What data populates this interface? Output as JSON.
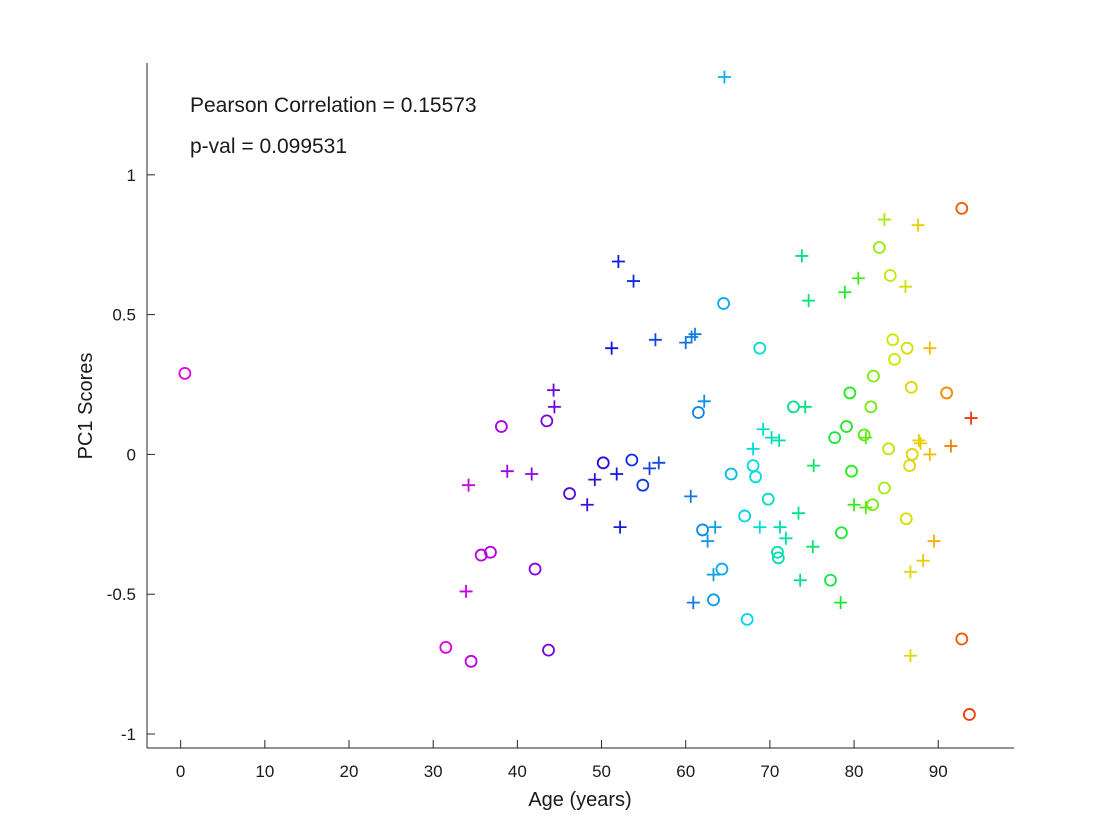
{
  "chart_data": {
    "type": "scatter",
    "xlabel": "Age (years)",
    "ylabel": "PC1 Scores",
    "xlim": [
      -4,
      99
    ],
    "ylim": [
      -1.05,
      1.4
    ],
    "xticks": [
      0,
      10,
      20,
      30,
      40,
      50,
      60,
      70,
      80,
      90
    ],
    "yticks": [
      -1,
      -0.5,
      0,
      0.5,
      1
    ],
    "xtick_labels": [
      "0",
      "10",
      "20",
      "30",
      "40",
      "50",
      "60",
      "70",
      "80",
      "90"
    ],
    "ytick_labels": [
      "-1",
      "-0.5",
      "0",
      "0.5",
      "1"
    ],
    "annotations": [
      "Pearson Correlation = 0.15573",
      "p-val = 0.099531"
    ],
    "marker_legend": {
      "circle": "o",
      "cross": "+"
    },
    "points": [
      {
        "x": 0.5,
        "y": 0.29,
        "m": "o"
      },
      {
        "x": 31.5,
        "y": -0.69,
        "m": "o"
      },
      {
        "x": 34.5,
        "y": -0.74,
        "m": "o"
      },
      {
        "x": 35.7,
        "y": -0.36,
        "m": "o"
      },
      {
        "x": 36.8,
        "y": -0.35,
        "m": "o"
      },
      {
        "x": 38.1,
        "y": 0.1,
        "m": "o"
      },
      {
        "x": 42.1,
        "y": -0.41,
        "m": "o"
      },
      {
        "x": 43.5,
        "y": 0.12,
        "m": "o"
      },
      {
        "x": 43.7,
        "y": -0.7,
        "m": "o"
      },
      {
        "x": 46.2,
        "y": -0.14,
        "m": "o"
      },
      {
        "x": 50.2,
        "y": -0.03,
        "m": "o"
      },
      {
        "x": 53.6,
        "y": -0.02,
        "m": "o"
      },
      {
        "x": 54.9,
        "y": -0.11,
        "m": "o"
      },
      {
        "x": 61.5,
        "y": 0.15,
        "m": "o"
      },
      {
        "x": 62.0,
        "y": -0.27,
        "m": "o"
      },
      {
        "x": 63.3,
        "y": -0.52,
        "m": "o"
      },
      {
        "x": 64.3,
        "y": -0.41,
        "m": "o"
      },
      {
        "x": 64.5,
        "y": 0.54,
        "m": "o"
      },
      {
        "x": 65.4,
        "y": -0.07,
        "m": "o"
      },
      {
        "x": 67.0,
        "y": -0.22,
        "m": "o"
      },
      {
        "x": 67.3,
        "y": -0.59,
        "m": "o"
      },
      {
        "x": 68.0,
        "y": -0.04,
        "m": "o"
      },
      {
        "x": 68.3,
        "y": -0.08,
        "m": "o"
      },
      {
        "x": 68.8,
        "y": 0.38,
        "m": "o"
      },
      {
        "x": 69.8,
        "y": -0.16,
        "m": "o"
      },
      {
        "x": 70.9,
        "y": -0.35,
        "m": "o"
      },
      {
        "x": 71.0,
        "y": -0.37,
        "m": "o"
      },
      {
        "x": 72.8,
        "y": 0.17,
        "m": "o"
      },
      {
        "x": 77.2,
        "y": -0.45,
        "m": "o"
      },
      {
        "x": 77.7,
        "y": 0.06,
        "m": "o"
      },
      {
        "x": 78.5,
        "y": -0.28,
        "m": "o"
      },
      {
        "x": 79.1,
        "y": 0.1,
        "m": "o"
      },
      {
        "x": 79.5,
        "y": 0.22,
        "m": "o"
      },
      {
        "x": 79.7,
        "y": -0.06,
        "m": "o"
      },
      {
        "x": 81.2,
        "y": 0.07,
        "m": "o"
      },
      {
        "x": 82.0,
        "y": 0.17,
        "m": "o"
      },
      {
        "x": 82.2,
        "y": -0.18,
        "m": "o"
      },
      {
        "x": 82.3,
        "y": 0.28,
        "m": "o"
      },
      {
        "x": 83.0,
        "y": 0.74,
        "m": "o"
      },
      {
        "x": 83.6,
        "y": -0.12,
        "m": "o"
      },
      {
        "x": 84.1,
        "y": 0.02,
        "m": "o"
      },
      {
        "x": 84.3,
        "y": 0.64,
        "m": "o"
      },
      {
        "x": 84.6,
        "y": 0.41,
        "m": "o"
      },
      {
        "x": 84.8,
        "y": 0.34,
        "m": "o"
      },
      {
        "x": 86.2,
        "y": -0.23,
        "m": "o"
      },
      {
        "x": 86.3,
        "y": 0.38,
        "m": "o"
      },
      {
        "x": 86.6,
        "y": -0.04,
        "m": "o"
      },
      {
        "x": 86.8,
        "y": 0.24,
        "m": "o"
      },
      {
        "x": 86.9,
        "y": 0.0,
        "m": "o"
      },
      {
        "x": 91.0,
        "y": 0.22,
        "m": "o"
      },
      {
        "x": 92.8,
        "y": 0.88,
        "m": "o"
      },
      {
        "x": 92.8,
        "y": -0.66,
        "m": "o"
      },
      {
        "x": 93.7,
        "y": -0.93,
        "m": "o"
      },
      {
        "x": 33.9,
        "y": -0.49,
        "m": "+"
      },
      {
        "x": 34.2,
        "y": -0.11,
        "m": "+"
      },
      {
        "x": 38.8,
        "y": -0.06,
        "m": "+"
      },
      {
        "x": 41.7,
        "y": -0.07,
        "m": "+"
      },
      {
        "x": 44.3,
        "y": 0.23,
        "m": "+"
      },
      {
        "x": 44.4,
        "y": 0.17,
        "m": "+"
      },
      {
        "x": 48.3,
        "y": -0.18,
        "m": "+"
      },
      {
        "x": 49.2,
        "y": -0.09,
        "m": "+"
      },
      {
        "x": 51.2,
        "y": 0.38,
        "m": "+"
      },
      {
        "x": 51.8,
        "y": -0.07,
        "m": "+"
      },
      {
        "x": 52.0,
        "y": 0.69,
        "m": "+"
      },
      {
        "x": 52.2,
        "y": -0.26,
        "m": "+"
      },
      {
        "x": 53.8,
        "y": 0.62,
        "m": "+"
      },
      {
        "x": 55.7,
        "y": -0.05,
        "m": "+"
      },
      {
        "x": 56.4,
        "y": 0.41,
        "m": "+"
      },
      {
        "x": 56.8,
        "y": -0.03,
        "m": "+"
      },
      {
        "x": 60.0,
        "y": 0.4,
        "m": "+"
      },
      {
        "x": 60.6,
        "y": -0.15,
        "m": "+"
      },
      {
        "x": 60.7,
        "y": 0.42,
        "m": "+"
      },
      {
        "x": 60.9,
        "y": -0.53,
        "m": "+"
      },
      {
        "x": 61.1,
        "y": 0.43,
        "m": "+"
      },
      {
        "x": 62.2,
        "y": 0.19,
        "m": "+"
      },
      {
        "x": 62.6,
        "y": -0.31,
        "m": "+"
      },
      {
        "x": 63.3,
        "y": -0.43,
        "m": "+"
      },
      {
        "x": 63.5,
        "y": -0.26,
        "m": "+"
      },
      {
        "x": 64.6,
        "y": 1.35,
        "m": "+"
      },
      {
        "x": 68.0,
        "y": 0.02,
        "m": "+"
      },
      {
        "x": 68.8,
        "y": -0.26,
        "m": "+"
      },
      {
        "x": 69.2,
        "y": 0.09,
        "m": "+"
      },
      {
        "x": 70.2,
        "y": 0.06,
        "m": "+"
      },
      {
        "x": 71.1,
        "y": 0.05,
        "m": "+"
      },
      {
        "x": 71.2,
        "y": -0.26,
        "m": "+"
      },
      {
        "x": 71.9,
        "y": -0.3,
        "m": "+"
      },
      {
        "x": 73.4,
        "y": -0.21,
        "m": "+"
      },
      {
        "x": 73.6,
        "y": -0.45,
        "m": "+"
      },
      {
        "x": 73.8,
        "y": 0.71,
        "m": "+"
      },
      {
        "x": 74.2,
        "y": 0.17,
        "m": "+"
      },
      {
        "x": 74.6,
        "y": 0.55,
        "m": "+"
      },
      {
        "x": 75.1,
        "y": -0.33,
        "m": "+"
      },
      {
        "x": 75.2,
        "y": -0.04,
        "m": "+"
      },
      {
        "x": 78.4,
        "y": -0.53,
        "m": "+"
      },
      {
        "x": 78.9,
        "y": 0.58,
        "m": "+"
      },
      {
        "x": 80.0,
        "y": -0.18,
        "m": "+"
      },
      {
        "x": 80.5,
        "y": 0.63,
        "m": "+"
      },
      {
        "x": 81.4,
        "y": 0.06,
        "m": "+"
      },
      {
        "x": 81.4,
        "y": -0.19,
        "m": "+"
      },
      {
        "x": 83.6,
        "y": 0.84,
        "m": "+"
      },
      {
        "x": 86.1,
        "y": 0.6,
        "m": "+"
      },
      {
        "x": 86.7,
        "y": -0.72,
        "m": "+"
      },
      {
        "x": 86.7,
        "y": -0.42,
        "m": "+"
      },
      {
        "x": 87.6,
        "y": 0.82,
        "m": "+"
      },
      {
        "x": 87.7,
        "y": 0.05,
        "m": "+"
      },
      {
        "x": 87.9,
        "y": 0.04,
        "m": "+"
      },
      {
        "x": 88.2,
        "y": -0.38,
        "m": "+"
      },
      {
        "x": 89.0,
        "y": 0.38,
        "m": "+"
      },
      {
        "x": 89.0,
        "y": 0.0,
        "m": "+"
      },
      {
        "x": 89.5,
        "y": -0.31,
        "m": "+"
      },
      {
        "x": 91.5,
        "y": 0.03,
        "m": "+"
      },
      {
        "x": 93.9,
        "y": 0.13,
        "m": "+"
      }
    ]
  }
}
